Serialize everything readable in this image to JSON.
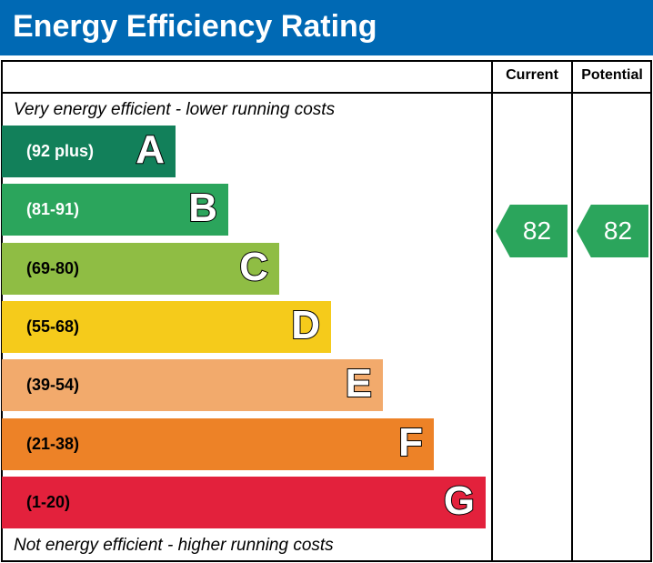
{
  "title": "Energy Efficiency Rating",
  "chart_data": {
    "type": "bar",
    "title": "Energy Efficiency Rating",
    "columns": [
      "Current",
      "Potential"
    ],
    "top_note": "Very energy efficient - lower running costs",
    "bottom_note": "Not energy efficient - higher running costs",
    "bands": [
      {
        "letter": "A",
        "range": "(92 plus)",
        "color": "#12805a",
        "text_color": "#ffffff"
      },
      {
        "letter": "B",
        "range": "(81-91)",
        "color": "#2ba55c",
        "text_color": "#ffffff"
      },
      {
        "letter": "C",
        "range": "(69-80)",
        "color": "#8fbd44",
        "text_color": "#000000"
      },
      {
        "letter": "D",
        "range": "(55-68)",
        "color": "#f5cb1b",
        "text_color": "#000000"
      },
      {
        "letter": "E",
        "range": "(39-54)",
        "color": "#f2aa6c",
        "text_color": "#000000"
      },
      {
        "letter": "F",
        "range": "(21-38)",
        "color": "#ed8227",
        "text_color": "#000000"
      },
      {
        "letter": "G",
        "range": "(1-20)",
        "color": "#e3213c",
        "text_color": "#000000"
      }
    ],
    "current": {
      "value": "82",
      "band": "B",
      "color": "#2ba55c"
    },
    "potential": {
      "value": "82",
      "band": "B",
      "color": "#2ba55c"
    }
  }
}
